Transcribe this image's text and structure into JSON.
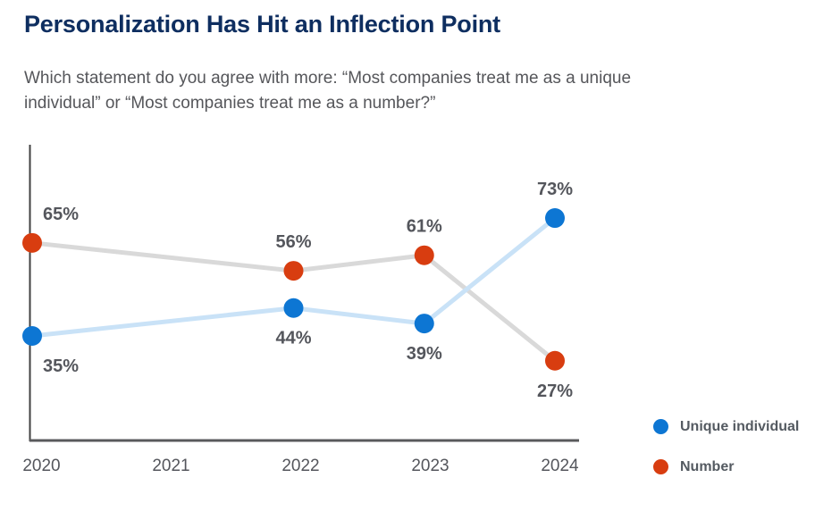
{
  "page": {
    "title": "Personalization Has Hit an Inflection Point",
    "subtitle": "Which statement do you agree with more: “Most companies treat me as a unique individual” or “Most companies treat me as a number?”"
  },
  "chart_data": {
    "type": "line",
    "title": "Personalization Has Hit an Inflection Point",
    "x": [
      "2020",
      "2021",
      "2022",
      "2023",
      "2024"
    ],
    "series": [
      {
        "name": "Unique individual",
        "marker_color": "#0d76d3",
        "line_color": "#c9e2f7",
        "values": [
          35,
          null,
          44,
          39,
          73
        ]
      },
      {
        "name": "Number",
        "marker_color": "#d83d10",
        "line_color": "#d9d9d9",
        "values": [
          65,
          null,
          56,
          61,
          27
        ]
      }
    ],
    "value_suffix": "%",
    "ylim": [
      0,
      100
    ],
    "grid": false,
    "data_labels": true,
    "legend_position": "bottom-right"
  },
  "colors": {
    "title": "#0e2e60",
    "subtitle": "#55565a",
    "y_axis": "#414141",
    "x_axis": "#595a5c",
    "tick_label": "#54565c",
    "data_label": "#54565c",
    "legend_text": "#545a61"
  }
}
